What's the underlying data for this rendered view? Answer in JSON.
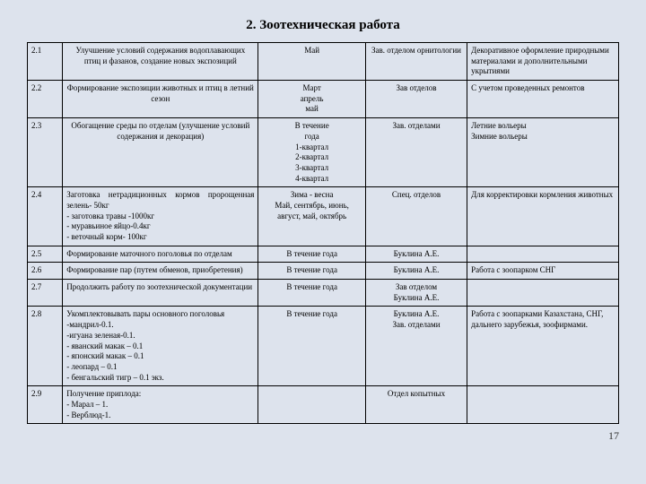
{
  "title": "2. Зоотехническая работа",
  "page_number": "17",
  "rows": [
    {
      "num": "2.1",
      "desc": "Улучшение условий содержания водоплавающих птиц и фазанов, создание новых экспозиций",
      "time": "Май",
      "resp": "Зав. отделом орнитологии",
      "note": "Декоративное оформление природными материалами и дополнительными укрытиями"
    },
    {
      "num": "2.2",
      "desc": "Формирование экспозиции животных и птиц в летний сезон",
      "time": "Март\nапрель\nмай",
      "resp": "Зав отделов",
      "note": "С учетом проведенных ремонтов"
    },
    {
      "num": "2.3",
      "desc": "Обогащение среды по отделам (улучшение условий содержания и декорация)",
      "time": "В течение\nгода\n1-квартал\n2-квартал\n3-квартал\n4-квартал",
      "resp": "Зав. отделами",
      "note": "Летние вольеры\nЗимние вольеры"
    },
    {
      "num": "2.4",
      "desc": "Заготовка нетрадиционных кормов пророщенная зелень- 50кг\n- заготовка травы -1000кг\n- муравьиное яйцо-0.4кг\n- веточный корм- 100кг",
      "time": "Зима - весна\nМай, сентябрь, июнь, август, май, октябрь",
      "resp": "Спец. отделов",
      "note": "Для корректировки кормления животных"
    },
    {
      "num": "2.5",
      "desc": "Формирование маточного поголовья по отделам",
      "time": "В течение года",
      "resp": "Буклина А.Е.",
      "note": ""
    },
    {
      "num": "2.6",
      "desc": "Формирование пар (путем обменов, приобретения)",
      "time": "В течение года",
      "resp": "Буклина А.Е.",
      "note": "Работа с зоопарком СНГ"
    },
    {
      "num": "2.7",
      "desc": "Продолжить работу по зоотехнической документации",
      "time": "В течение года",
      "resp": "Зав отделом\nБуклина А.Е.",
      "note": ""
    },
    {
      "num": "2.8",
      "desc": "Укомплектовывать пары основного поголовья\n-мандрил-0.1.\n-игуана зеленая-0.1.\n- яванский макак – 0.1\n- японский макак – 0.1\n- леопард – 0.1\n- бенгальский тигр – 0.1 экз.",
      "time": "В течение года",
      "resp": "Буклина А.Е.\nЗав. отделами",
      "note": "Работа с зоопарками Казахстана, СНГ, дальнего зарубежья, зоофирмами."
    },
    {
      "num": "2.9",
      "desc": "Получение приплода:\n- Марал – 1.\n- Верблюд-1.",
      "time": "",
      "resp": "Отдел копытных",
      "note": ""
    }
  ]
}
